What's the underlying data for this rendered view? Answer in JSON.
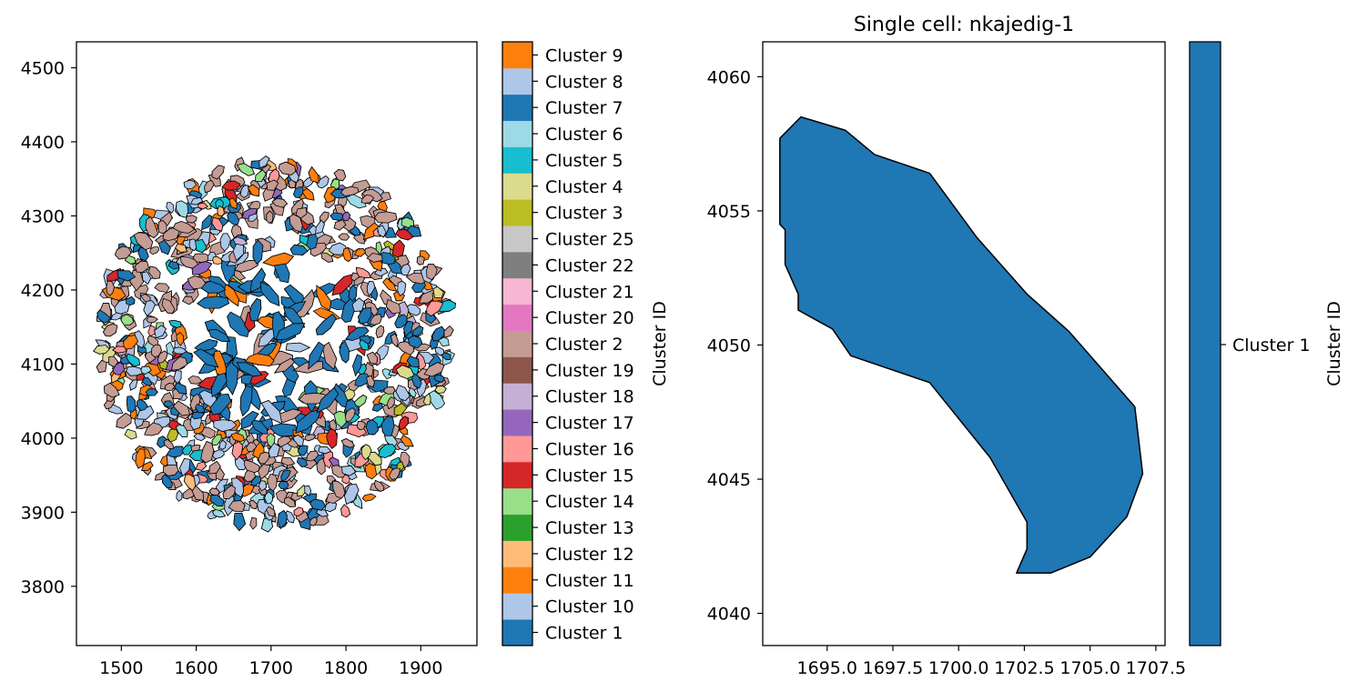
{
  "chart_data": [
    {
      "type": "scatter",
      "description_kind": "spatial cell segmentation map (polygons colored by cluster)",
      "title": "",
      "xlabel": "",
      "ylabel": "",
      "xlim": [
        1440,
        1975
      ],
      "ylim": [
        3720,
        4535
      ],
      "xticks": [
        1500,
        1600,
        1700,
        1800,
        1900
      ],
      "yticks": [
        3800,
        3900,
        4000,
        4100,
        4200,
        4300,
        4400,
        4500
      ],
      "tissue_extent": {
        "x": [
          1465,
          1945
        ],
        "y": [
          3880,
          4380
        ]
      },
      "grid": false,
      "colorbar": {
        "label": "Cluster ID",
        "categories_bottom_to_top": [
          {
            "name": "Cluster 1",
            "color": "#1f77b4"
          },
          {
            "name": "Cluster 10",
            "color": "#aec7e8"
          },
          {
            "name": "Cluster 11",
            "color": "#ff7f0e"
          },
          {
            "name": "Cluster 12",
            "color": "#ffbb78"
          },
          {
            "name": "Cluster 13",
            "color": "#2ca02c"
          },
          {
            "name": "Cluster 14",
            "color": "#98df8a"
          },
          {
            "name": "Cluster 15",
            "color": "#d62728"
          },
          {
            "name": "Cluster 16",
            "color": "#ff9896"
          },
          {
            "name": "Cluster 17",
            "color": "#9467bd"
          },
          {
            "name": "Cluster 18",
            "color": "#c5b0d5"
          },
          {
            "name": "Cluster 19",
            "color": "#8c564b"
          },
          {
            "name": "Cluster 2",
            "color": "#c49c94"
          },
          {
            "name": "Cluster 20",
            "color": "#e377c2"
          },
          {
            "name": "Cluster 21",
            "color": "#f7b6d2"
          },
          {
            "name": "Cluster 22",
            "color": "#7f7f7f"
          },
          {
            "name": "Cluster 25",
            "color": "#c7c7c7"
          },
          {
            "name": "Cluster 3",
            "color": "#bcbd22"
          },
          {
            "name": "Cluster 4",
            "color": "#dbdb8d"
          },
          {
            "name": "Cluster 5",
            "color": "#17becf"
          },
          {
            "name": "Cluster 6",
            "color": "#9edae5"
          },
          {
            "name": "Cluster 7",
            "color": "#1f77b4"
          },
          {
            "name": "Cluster 8",
            "color": "#aec7e8"
          },
          {
            "name": "Cluster 9",
            "color": "#ff7f0e"
          }
        ]
      }
    },
    {
      "type": "area",
      "title": "Single cell: nkajedig-1",
      "xlabel": "",
      "ylabel": "",
      "xlim": [
        1692.55,
        1707.85
      ],
      "ylim": [
        4038.8,
        4061.3
      ],
      "xticks": [
        1695.0,
        1697.5,
        1700.0,
        1702.5,
        1705.0,
        1707.5
      ],
      "xtick_labels": [
        "1695.0",
        "1697.5",
        "1700.0",
        "1702.5",
        "1705.0",
        "1707.5"
      ],
      "yticks": [
        4040,
        4045,
        4050,
        4055,
        4060
      ],
      "grid": false,
      "polygon": {
        "cluster": "Cluster 1",
        "color": "#1f77b4",
        "points": [
          [
            1694.0,
            4058.5
          ],
          [
            1695.7,
            4058.0
          ],
          [
            1696.8,
            4057.1
          ],
          [
            1698.9,
            4056.4
          ],
          [
            1700.7,
            4054.0
          ],
          [
            1702.6,
            4051.9
          ],
          [
            1704.2,
            4050.5
          ],
          [
            1706.7,
            4047.7
          ],
          [
            1707.0,
            4045.2
          ],
          [
            1706.4,
            4043.6
          ],
          [
            1705.0,
            4042.1
          ],
          [
            1703.5,
            4041.5
          ],
          [
            1702.2,
            4041.5
          ],
          [
            1702.6,
            4042.4
          ],
          [
            1702.6,
            4043.4
          ],
          [
            1701.2,
            4045.8
          ],
          [
            1698.9,
            4048.6
          ],
          [
            1695.9,
            4049.6
          ],
          [
            1695.2,
            4050.6
          ],
          [
            1693.9,
            4051.3
          ],
          [
            1693.9,
            4051.9
          ],
          [
            1693.4,
            4053.0
          ],
          [
            1693.4,
            4054.3
          ],
          [
            1693.2,
            4054.5
          ],
          [
            1693.2,
            4057.7
          ]
        ]
      },
      "colorbar": {
        "label": "Cluster ID",
        "categories": [
          {
            "name": "Cluster 1",
            "color": "#1f77b4"
          }
        ]
      }
    }
  ]
}
